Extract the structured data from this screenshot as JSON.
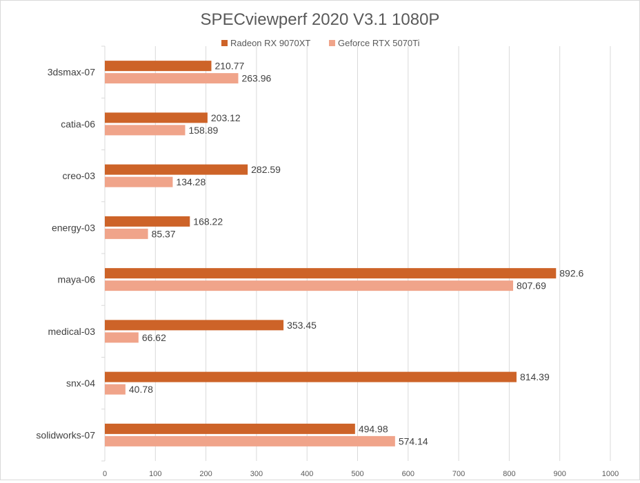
{
  "chart_data": {
    "type": "bar",
    "orientation": "horizontal",
    "title": "SPECviewperf 2020 V3.1 1080P",
    "xlabel": "",
    "ylabel": "",
    "xlim": [
      0,
      1000
    ],
    "ticks": [
      "0",
      "100",
      "200",
      "300",
      "400",
      "500",
      "600",
      "700",
      "800",
      "900",
      "1000"
    ],
    "tick_values": [
      0,
      100,
      200,
      300,
      400,
      500,
      600,
      700,
      800,
      900,
      1000
    ],
    "grid": "vertical",
    "legend_position": "top",
    "categories": [
      "3dsmax-07",
      "catia-06",
      "creo-03",
      "energy-03",
      "maya-06",
      "medical-03",
      "snx-04",
      "solidworks-07"
    ],
    "series": [
      {
        "name": "Radeon RX 9070XT",
        "color": "#cd6328",
        "values": [
          210.77,
          203.12,
          282.59,
          168.22,
          892.6,
          353.45,
          814.39,
          494.98
        ],
        "labels": [
          "210.77",
          "203.12",
          "282.59",
          "168.22",
          "892.6",
          "353.45",
          "814.39",
          "494.98"
        ]
      },
      {
        "name": "Geforce RTX 5070Ti",
        "color": "#f0a48a",
        "values": [
          263.96,
          158.89,
          134.28,
          85.37,
          807.69,
          66.62,
          40.78,
          574.14
        ],
        "labels": [
          "263.96",
          "158.89",
          "134.28",
          "85.37",
          "807.69",
          "66.62",
          "40.78",
          "574.14"
        ]
      }
    ]
  }
}
